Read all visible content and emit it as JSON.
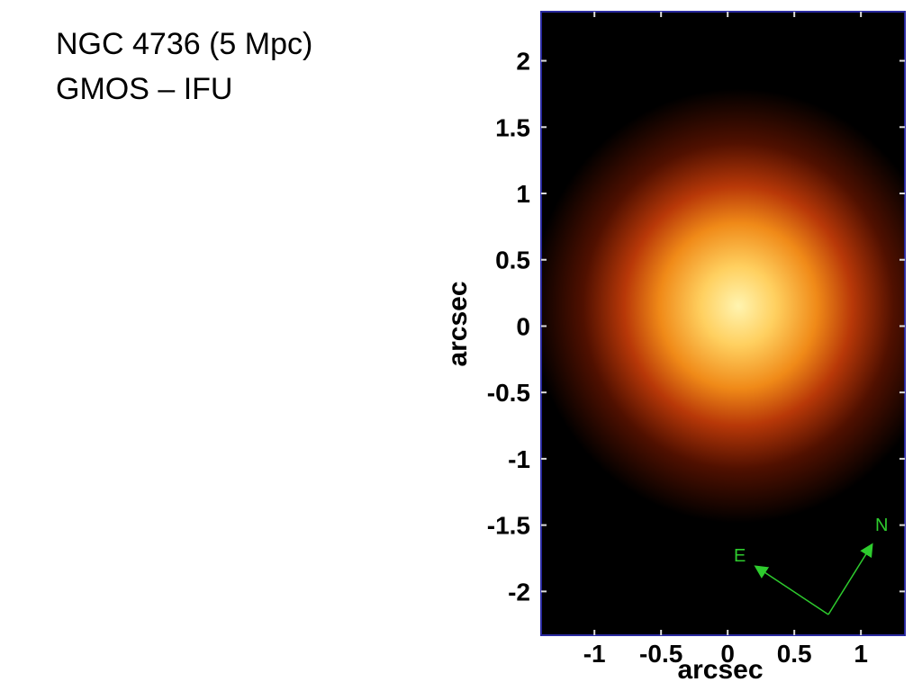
{
  "chart_data": {
    "type": "image",
    "title": [
      "NGC 4736 (5 Mpc)",
      "GMOS – IFU"
    ],
    "xlabel": "arcsec",
    "ylabel": "arcsec",
    "xlim": [
      -1.4,
      1.33
    ],
    "ylim": [
      -2.33,
      2.37
    ],
    "xticks": [
      -1,
      -0.5,
      0,
      0.5,
      1
    ],
    "yticks": [
      -2,
      -1.5,
      -1,
      -0.5,
      0,
      0.5,
      1,
      1.5,
      2
    ],
    "compass": {
      "north": "N",
      "east": "E"
    }
  }
}
